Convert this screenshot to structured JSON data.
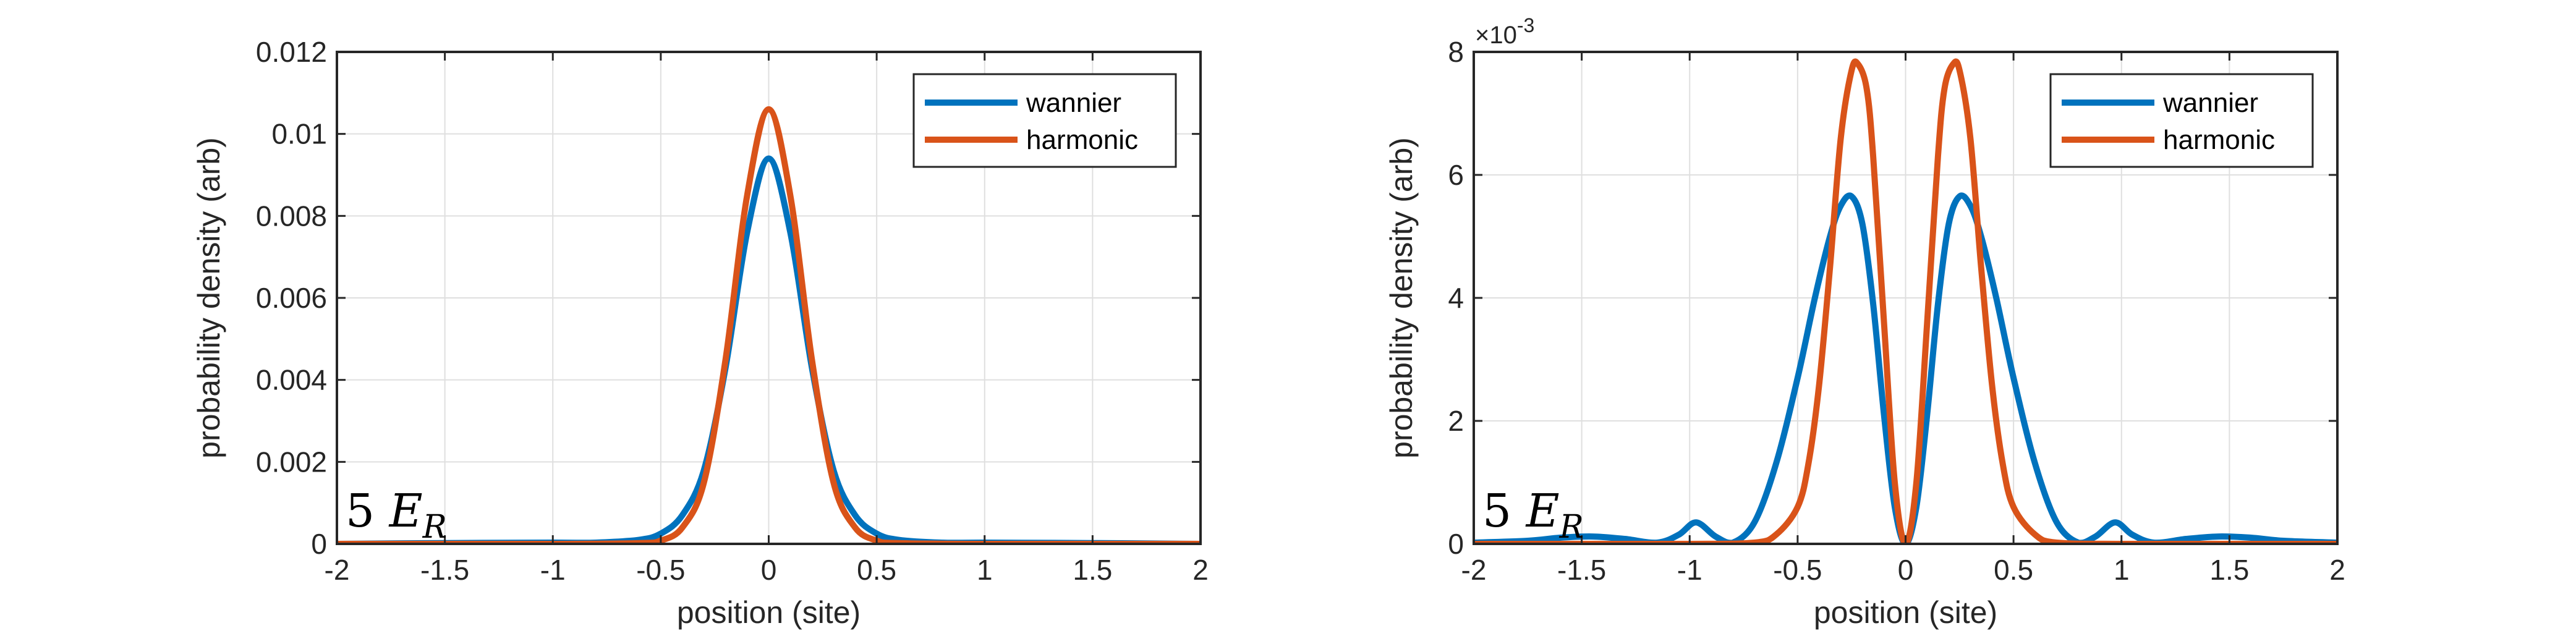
{
  "chart_data": [
    {
      "type": "line",
      "title": "",
      "xlabel": "position (site)",
      "ylabel": "probability density (arb)",
      "xlim": [
        -2,
        2
      ],
      "ylim": [
        0,
        0.012
      ],
      "xticks": [
        -2,
        -1.5,
        -1,
        -0.5,
        0,
        0.5,
        1,
        1.5,
        2
      ],
      "xtick_labels": [
        "-2",
        "-1.5",
        "-1",
        "-0.5",
        "0",
        "0.5",
        "1",
        "1.5",
        "2"
      ],
      "yticks": [
        0,
        0.002,
        0.004,
        0.006,
        0.008,
        0.01,
        0.012
      ],
      "ytick_labels": [
        "0",
        "0.002",
        "0.004",
        "0.006",
        "0.008",
        "0.01",
        "0.012"
      ],
      "y_exponent_label": "",
      "grid": true,
      "legend_position": "top-right",
      "annotation": {
        "text": "5 ",
        "variable": "E",
        "subscript": "R"
      },
      "series": [
        {
          "name": "wannier",
          "color": "#0072BD",
          "x": [
            -2,
            -1.5,
            -1,
            -0.8,
            -0.6,
            -0.5,
            -0.4,
            -0.3,
            -0.2,
            -0.1,
            0,
            0.1,
            0.2,
            0.3,
            0.4,
            0.5,
            0.6,
            0.8,
            1,
            1.5,
            2
          ],
          "y": [
            0,
            2e-05,
            3e-05,
            3e-05,
            0.0001,
            0.00025,
            0.0007,
            0.0018,
            0.0043,
            0.0076,
            0.0094,
            0.0076,
            0.0043,
            0.0018,
            0.0007,
            0.00025,
            0.0001,
            3e-05,
            3e-05,
            2e-05,
            0
          ]
        },
        {
          "name": "harmonic",
          "color": "#D95319",
          "x": [
            -2,
            -1,
            -0.6,
            -0.5,
            -0.4,
            -0.3,
            -0.2,
            -0.1,
            0,
            0.1,
            0.2,
            0.3,
            0.4,
            0.5,
            0.6,
            1,
            2
          ],
          "y": [
            0,
            0,
            2e-05,
            8e-05,
            0.0004,
            0.0015,
            0.0045,
            0.0085,
            0.0106,
            0.0085,
            0.0045,
            0.0015,
            0.0004,
            8e-05,
            2e-05,
            0,
            0
          ]
        }
      ]
    },
    {
      "type": "line",
      "title": "",
      "xlabel": "position (site)",
      "ylabel": "probability density (arb)",
      "xlim": [
        -2,
        2
      ],
      "ylim": [
        0,
        8
      ],
      "xticks": [
        -2,
        -1.5,
        -1,
        -0.5,
        0,
        0.5,
        1,
        1.5,
        2
      ],
      "xtick_labels": [
        "-2",
        "-1.5",
        "-1",
        "-0.5",
        "0",
        "0.5",
        "1",
        "1.5",
        "2"
      ],
      "yticks": [
        0,
        2,
        4,
        6,
        8
      ],
      "ytick_labels": [
        "0",
        "2",
        "4",
        "6",
        "8"
      ],
      "y_exponent_label": "×10",
      "y_exponent_power": "-3",
      "grid": true,
      "legend_position": "top-right",
      "annotation": {
        "text": "5 ",
        "variable": "E",
        "subscript": "R"
      },
      "series": [
        {
          "name": "wannier",
          "color": "#0072BD",
          "x": [
            -2,
            -1.75,
            -1.6,
            -1.45,
            -1.3,
            -1.15,
            -1.05,
            -0.97,
            -0.88,
            -0.8,
            -0.7,
            -0.6,
            -0.5,
            -0.42,
            -0.35,
            -0.3,
            -0.25,
            -0.2,
            -0.15,
            -0.1,
            -0.05,
            0,
            0.05,
            0.1,
            0.15,
            0.2,
            0.25,
            0.3,
            0.35,
            0.42,
            0.5,
            0.6,
            0.7,
            0.8,
            0.88,
            0.97,
            1.05,
            1.15,
            1.3,
            1.45,
            1.6,
            1.75,
            2
          ],
          "y": [
            0.02,
            0.05,
            0.1,
            0.12,
            0.08,
            0.02,
            0.15,
            0.35,
            0.12,
            0.02,
            0.35,
            1.3,
            2.7,
            4.0,
            5.0,
            5.5,
            5.65,
            5.2,
            3.9,
            2.1,
            0.6,
            0,
            0.6,
            2.1,
            3.9,
            5.2,
            5.65,
            5.5,
            5.0,
            4.0,
            2.7,
            1.3,
            0.35,
            0.02,
            0.12,
            0.35,
            0.15,
            0.02,
            0.08,
            0.12,
            0.1,
            0.05,
            0.02
          ]
        },
        {
          "name": "harmonic",
          "color": "#D95319",
          "x": [
            -2,
            -1,
            -0.7,
            -0.6,
            -0.5,
            -0.45,
            -0.4,
            -0.35,
            -0.3,
            -0.25,
            -0.22,
            -0.18,
            -0.15,
            -0.1,
            -0.05,
            0,
            0.05,
            0.1,
            0.15,
            0.18,
            0.22,
            0.25,
            0.3,
            0.35,
            0.4,
            0.45,
            0.5,
            0.6,
            0.7,
            1,
            2
          ],
          "y": [
            0,
            0,
            0.02,
            0.15,
            0.6,
            1.3,
            2.6,
            4.5,
            6.6,
            7.7,
            7.8,
            7.4,
            6.3,
            3.6,
            1.0,
            0,
            1.0,
            3.6,
            6.3,
            7.4,
            7.8,
            7.7,
            6.6,
            4.5,
            2.6,
            1.3,
            0.6,
            0.15,
            0.02,
            0,
            0
          ]
        }
      ]
    }
  ]
}
